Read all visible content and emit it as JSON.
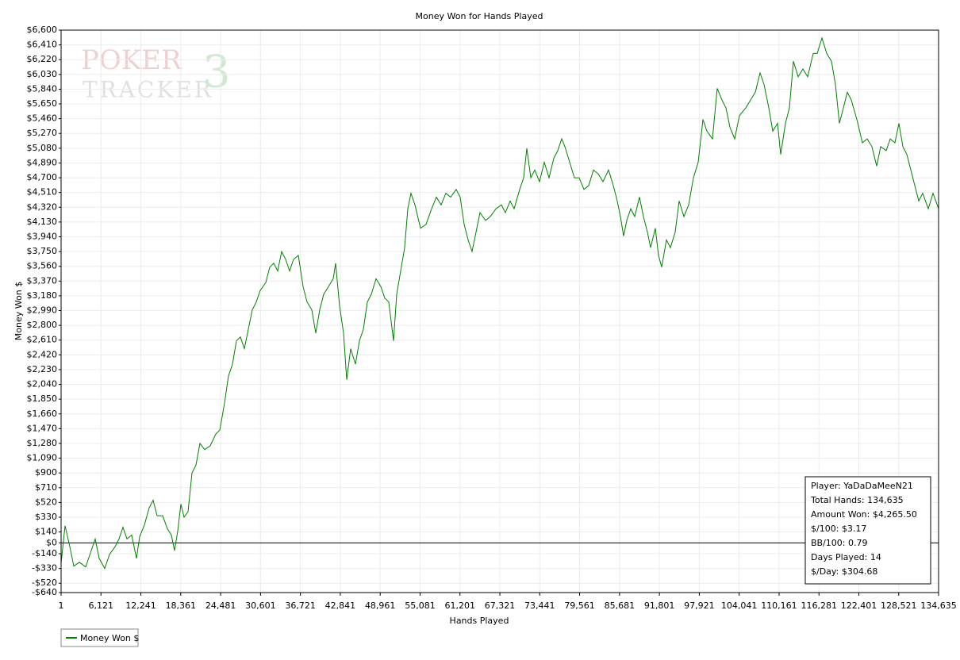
{
  "chart_data": {
    "type": "line",
    "title": "Money Won for Hands Played",
    "x_label": "Hands Played",
    "y_label": "Money Won $",
    "logo": {
      "line1": "POKER",
      "line2": "TRACKER",
      "mark": "3"
    },
    "stats": [
      "Player: YaDaDaMeeN21",
      "Total Hands: 134,635",
      "Amount Won: $4,265.50",
      "$/100: $3.17",
      "BB/100: 0.79",
      "Days Played: 14",
      "$/Day: $304.68"
    ],
    "grid": true,
    "legend": "bottom-left",
    "zero_line_color": "#000000",
    "xlim": [
      1,
      134635
    ],
    "ylim": [
      -640,
      6600
    ],
    "xticks": [
      1,
      {
        "value": 6121,
        "label": "6,121"
      },
      {
        "value": 12241,
        "label": "12,241"
      },
      {
        "value": 18361,
        "label": "18,361"
      },
      {
        "value": 24481,
        "label": "24,481"
      },
      {
        "value": 30601,
        "label": "30,601"
      },
      {
        "value": 36721,
        "label": "36,721"
      },
      {
        "value": 42841,
        "label": "42,841"
      },
      {
        "value": 48961,
        "label": "48,961"
      },
      {
        "value": 55081,
        "label": "55,081"
      },
      {
        "value": 61201,
        "label": "61,201"
      },
      {
        "value": 67321,
        "label": "67,321"
      },
      {
        "value": 73441,
        "label": "73,441"
      },
      {
        "value": 79561,
        "label": "79,561"
      },
      {
        "value": 85681,
        "label": "85,681"
      },
      {
        "value": 91801,
        "label": "91,801"
      },
      {
        "value": 97921,
        "label": "97,921"
      },
      {
        "value": 104041,
        "label": "104,041"
      },
      {
        "value": 110161,
        "label": "110,161"
      },
      {
        "value": 116281,
        "label": "116,281"
      },
      {
        "value": 122401,
        "label": "122,401"
      },
      {
        "value": 128521,
        "label": "128,521"
      },
      {
        "value": 134635,
        "label": "134,635"
      }
    ],
    "yticks": [
      {
        "value": -640,
        "label": "-$640"
      },
      {
        "value": -520,
        "label": "-$520"
      },
      {
        "value": -330,
        "label": "-$330"
      },
      {
        "value": -140,
        "label": "-$140"
      },
      {
        "value": 0,
        "label": "$0"
      },
      {
        "value": 140,
        "label": "$140"
      },
      {
        "value": 330,
        "label": "$330"
      },
      {
        "value": 520,
        "label": "$520"
      },
      {
        "value": 710,
        "label": "$710"
      },
      {
        "value": 900,
        "label": "$900"
      },
      {
        "value": 1090,
        "label": "$1,090"
      },
      {
        "value": 1280,
        "label": "$1,280"
      },
      {
        "value": 1470,
        "label": "$1,470"
      },
      {
        "value": 1660,
        "label": "$1,660"
      },
      {
        "value": 1850,
        "label": "$1,850"
      },
      {
        "value": 2040,
        "label": "$2,040"
      },
      {
        "value": 2230,
        "label": "$2,230"
      },
      {
        "value": 2420,
        "label": "$2,420"
      },
      {
        "value": 2610,
        "label": "$2,610"
      },
      {
        "value": 2800,
        "label": "$2,800"
      },
      {
        "value": 2990,
        "label": "$2,990"
      },
      {
        "value": 3180,
        "label": "$3,180"
      },
      {
        "value": 3370,
        "label": "$3,370"
      },
      {
        "value": 3560,
        "label": "$3,560"
      },
      {
        "value": 3750,
        "label": "$3,750"
      },
      {
        "value": 3940,
        "label": "$3,940"
      },
      {
        "value": 4130,
        "label": "$4,130"
      },
      {
        "value": 4320,
        "label": "$4,320"
      },
      {
        "value": 4510,
        "label": "$4,510"
      },
      {
        "value": 4700,
        "label": "$4,700"
      },
      {
        "value": 4890,
        "label": "$4,890"
      },
      {
        "value": 5080,
        "label": "$5,080"
      },
      {
        "value": 5270,
        "label": "$5,270"
      },
      {
        "value": 5460,
        "label": "$5,460"
      },
      {
        "value": 5650,
        "label": "$5,650"
      },
      {
        "value": 5840,
        "label": "$5,840"
      },
      {
        "value": 6030,
        "label": "$6,030"
      },
      {
        "value": 6220,
        "label": "$6,220"
      },
      {
        "value": 6410,
        "label": "$6,410"
      },
      {
        "value": 6600,
        "label": "$6,600"
      }
    ],
    "x": [
      1,
      610,
      1340,
      1949,
      2801,
      3775,
      4627,
      5235,
      5844,
      6696,
      7427,
      8279,
      8887,
      9496,
      10105,
      10835,
      11566,
      12053,
      12783,
      13513,
      14122,
      14731,
      15583,
      16313,
      16922,
      17408,
      17895,
      18382,
      18869,
      19478,
      20087,
      20695,
      21304,
      22035,
      22887,
      23739,
      24347,
      25078,
      25687,
      26295,
      26904,
      27512,
      28121,
      28851,
      29338,
      29947,
      30555,
      31407,
      32016,
      32625,
      33233,
      33842,
      34450,
      35059,
      35668,
      36398,
      37129,
      37737,
      38468,
      39077,
      39685,
      40294,
      41025,
      41755,
      42118,
      42727,
      43335,
      43822,
      44431,
      45161,
      45770,
      46379,
      46987,
      47596,
      48327,
      49057,
      49666,
      50274,
      51005,
      51492,
      52100,
      52709,
      53196,
      53683,
      54291,
      55143,
      55995,
      56847,
      57578,
      58308,
      59039,
      59769,
      60621,
      61230,
      61839,
      62447,
      63056,
      63665,
      64273,
      65125,
      65856,
      66708,
      67560,
      68169,
      68899,
      69508,
      70360,
      70969,
      71456,
      72064,
      72673,
      73403,
      74134,
      74864,
      75595,
      76204,
      76812,
      77299,
      78030,
      78760,
      79491,
      80221,
      80951,
      81682,
      82412,
      83143,
      83995,
      84725,
      85334,
      85821,
      86308,
      86795,
      87403,
      88012,
      88742,
      89351,
      89960,
      90447,
      91177,
      91664,
      92151,
      92881,
      93490,
      94221,
      94829,
      95560,
      96290,
      97021,
      97751,
      98482,
      99090,
      99942,
      100673,
      101403,
      102012,
      102621,
      103351,
      104082,
      105055,
      105786,
      106516,
      107247,
      107855,
      108586,
      109195,
      109925,
      110412,
      111142,
      111751,
      112360,
      113090,
      113821,
      114551,
      115403,
      116012,
      116742,
      117473,
      118203,
      118812,
      119421,
      120029,
      120638,
      121247,
      122099,
      122951,
      123681,
      124412,
      125142,
      125751,
      126603,
      127212,
      127942,
      128551,
      129160,
      129768,
      130377,
      130986,
      131594,
      132203,
      133055,
      133785,
      134635
    ],
    "series": [
      {
        "name": "Money Won $",
        "color": "#008000",
        "values": [
          -260,
          220,
          -50,
          -300,
          -250,
          -310,
          -100,
          50,
          -200,
          -330,
          -150,
          -50,
          50,
          200,
          50,
          100,
          -200,
          80,
          230,
          450,
          550,
          350,
          350,
          180,
          100,
          -100,
          150,
          500,
          330,
          400,
          900,
          1000,
          1280,
          1200,
          1250,
          1400,
          1450,
          1800,
          2150,
          2300,
          2600,
          2650,
          2500,
          2800,
          3000,
          3100,
          3250,
          3350,
          3550,
          3600,
          3500,
          3750,
          3650,
          3500,
          3650,
          3700,
          3300,
          3100,
          3000,
          2700,
          3000,
          3200,
          3300,
          3400,
          3600,
          3050,
          2700,
          2100,
          2500,
          2300,
          2600,
          2750,
          3100,
          3200,
          3400,
          3300,
          3150,
          3100,
          2600,
          3200,
          3500,
          3800,
          4300,
          4500,
          4350,
          4050,
          4100,
          4300,
          4450,
          4350,
          4500,
          4450,
          4550,
          4450,
          4100,
          3900,
          3750,
          4000,
          4250,
          4150,
          4200,
          4300,
          4350,
          4250,
          4400,
          4300,
          4550,
          4700,
          5080,
          4700,
          4800,
          4650,
          4900,
          4700,
          4950,
          5050,
          5200,
          5100,
          4900,
          4700,
          4700,
          4550,
          4600,
          4800,
          4750,
          4650,
          4800,
          4600,
          4400,
          4200,
          3950,
          4150,
          4300,
          4200,
          4450,
          4200,
          4000,
          3800,
          4050,
          3700,
          3550,
          3900,
          3800,
          4000,
          4400,
          4200,
          4350,
          4700,
          4900,
          5450,
          5300,
          5200,
          5850,
          5700,
          5600,
          5350,
          5200,
          5500,
          5600,
          5700,
          5800,
          6050,
          5900,
          5600,
          5300,
          5400,
          5000,
          5400,
          5600,
          6200,
          6000,
          6100,
          6000,
          6300,
          6300,
          6500,
          6300,
          6200,
          5900,
          5400,
          5600,
          5800,
          5700,
          5450,
          5150,
          5200,
          5100,
          4850,
          5100,
          5050,
          5200,
          5150,
          5400,
          5100,
          5000,
          4800,
          4600,
          4400,
          4500,
          4300,
          4500,
          4300
        ]
      }
    ]
  }
}
